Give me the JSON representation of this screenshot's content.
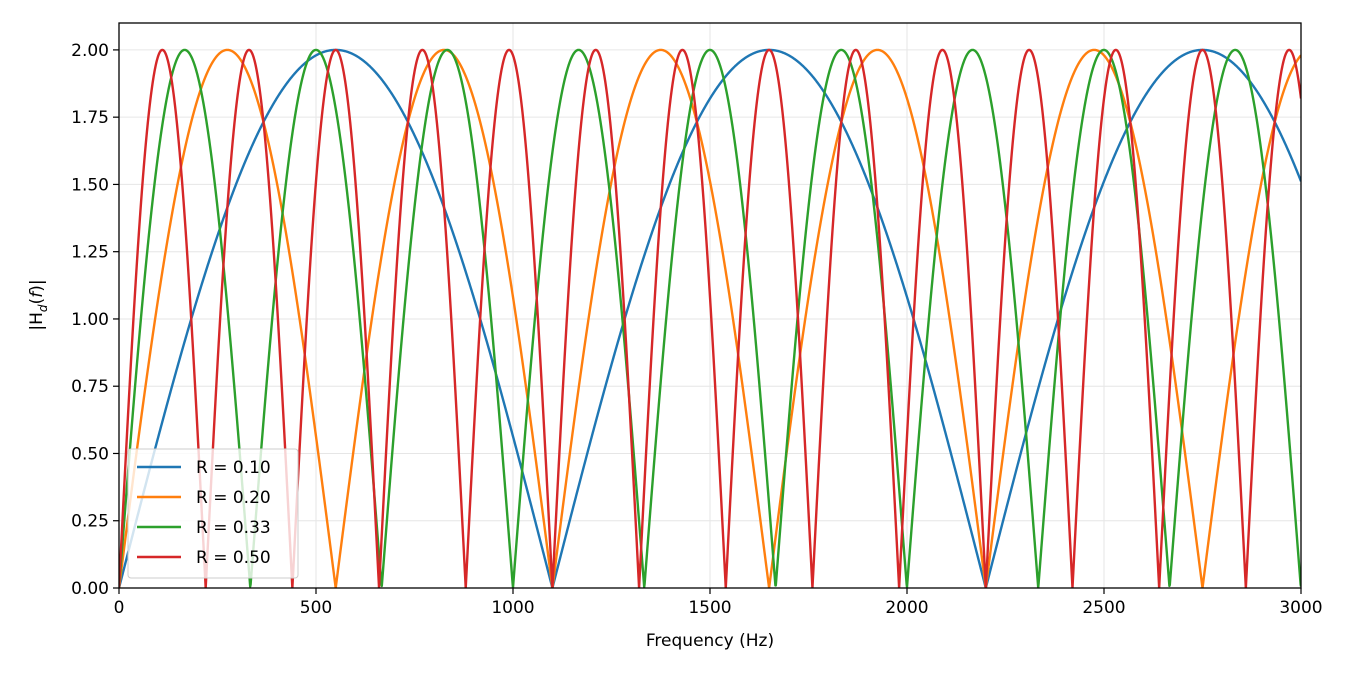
{
  "chart_data": {
    "type": "line",
    "xlabel": "Frequency (Hz)",
    "ylabel_parts": [
      "|H",
      "d",
      "(",
      "f",
      ")|"
    ],
    "xlim": [
      0,
      3000
    ],
    "ylim": [
      0,
      2.1
    ],
    "x_ticks": [
      0,
      500,
      1000,
      1500,
      2000,
      2500,
      3000
    ],
    "x_tick_labels": [
      "0",
      "500",
      "1000",
      "1500",
      "2000",
      "2500",
      "3000"
    ],
    "y_ticks": [
      0,
      0.25,
      0.5,
      0.75,
      1.0,
      1.25,
      1.5,
      1.75,
      2.0
    ],
    "y_tick_labels": [
      "0.00",
      "0.25",
      "0.50",
      "0.75",
      "1.00",
      "1.25",
      "1.50",
      "1.75",
      "2.00"
    ],
    "grid": true,
    "legend_position": "lower-left",
    "function": "|H_d(f)| = 2|sin(pi f / fn)|",
    "series": [
      {
        "name": "R = 0.10",
        "color": "#1f77b4",
        "fn": 1100,
        "nulls": [
          0,
          1100,
          2200
        ],
        "peaks": [
          550,
          1650,
          2750
        ],
        "peak_value": 2.0
      },
      {
        "name": "R = 0.20",
        "color": "#ff7f0e",
        "fn": 550,
        "nulls": [
          0,
          550,
          1100,
          1650,
          2200,
          2750
        ],
        "peaks": [
          275,
          825,
          1375,
          1925,
          2475
        ],
        "peak_value": 2.0
      },
      {
        "name": "R = 0.33",
        "color": "#2ca02c",
        "fn": 333.3,
        "nulls": [
          0,
          333.3,
          666.7,
          1000,
          1333.3,
          1666.7,
          2000,
          2333.3,
          2666.7,
          3000
        ],
        "peaks": [
          166.7,
          500,
          833.3,
          1166.7,
          1500,
          1833.3,
          2166.7,
          2500,
          2833.3
        ],
        "peak_value": 2.0
      },
      {
        "name": "R = 0.50",
        "color": "#d62728",
        "fn": 220,
        "nulls": [
          0,
          220,
          440,
          660,
          880,
          1100,
          1320,
          1540,
          1760,
          1980,
          2200,
          2420,
          2640,
          2860
        ],
        "peaks": [
          110,
          330,
          550,
          770,
          990,
          1210,
          1430,
          1650,
          1870,
          2090,
          2310,
          2530,
          2750,
          2970
        ],
        "peak_value": 2.0
      }
    ]
  }
}
